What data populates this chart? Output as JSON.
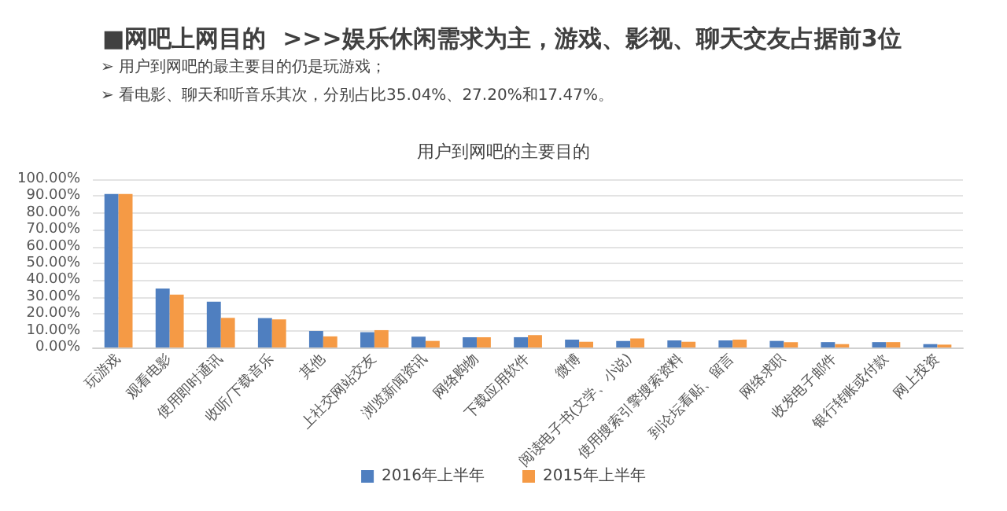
{
  "chart_data": {
    "type": "bar",
    "title": "■网吧上网目的  >>>娱乐休闲需求为主，游戏、影视、聊天交友占据前3位",
    "subtitle": "用户到网吧的主要目的",
    "annotations": [
      "➢ 用户到网吧的最主要目的仍是玩游戏；",
      "➢ 看电影、聊天和听音乐其次，分别占比35.04%、27.20%和17.47%。"
    ],
    "categories": [
      "玩游戏",
      "观看电影",
      "使用即时通讯",
      "收听/下载音乐",
      "其他",
      "上社交网站交友",
      "浏览新闻资讯",
      "网络购物",
      "下载应用软件",
      "微博",
      "阅读电子书(文学、小说)",
      "使用搜索引擎搜索资料",
      "到论坛看贴、留言",
      "网络求职",
      "收发电子邮件",
      "银行转账或付款",
      "网上投资"
    ],
    "series": [
      {
        "name": "2016年上半年",
        "color": "#4f7fc0",
        "values": [
          91.2,
          35.04,
          27.2,
          17.47,
          9.8,
          9.1,
          6.4,
          6.1,
          6.1,
          4.7,
          3.9,
          4.2,
          4.2,
          3.9,
          3.2,
          3.2,
          2.0
        ]
      },
      {
        "name": "2015年上半年",
        "color": "#f59a45",
        "values": [
          91.2,
          31.4,
          17.6,
          16.7,
          6.6,
          10.3,
          3.9,
          6.1,
          7.4,
          3.4,
          5.4,
          3.4,
          4.7,
          3.2,
          2.0,
          3.2,
          1.7
        ]
      }
    ],
    "ylim": [
      0,
      100
    ],
    "yticks": [
      {
        "value": 0,
        "label": "0.00%"
      },
      {
        "value": 10,
        "label": "10.00%"
      },
      {
        "value": 20,
        "label": "20.00%"
      },
      {
        "value": 30,
        "label": "30.00%"
      },
      {
        "value": 40,
        "label": "40.00%"
      },
      {
        "value": 50,
        "label": "50.00%"
      },
      {
        "value": 60,
        "label": "60.00%"
      },
      {
        "value": 70,
        "label": "70.00%"
      },
      {
        "value": 80,
        "label": "80.00%"
      },
      {
        "value": 90,
        "label": "90.00%"
      },
      {
        "value": 100,
        "label": "100.00%"
      }
    ],
    "grid": "y",
    "legend": "bottom"
  }
}
